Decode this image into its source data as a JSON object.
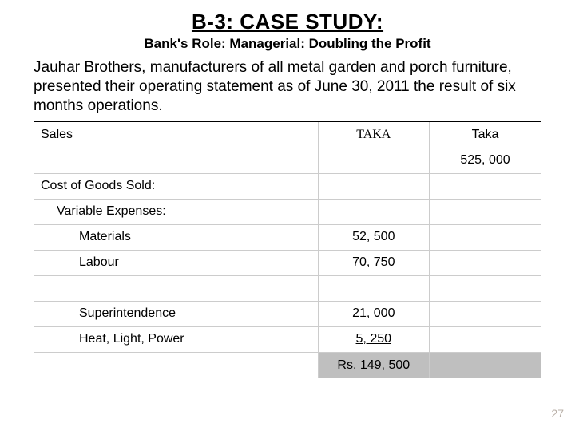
{
  "title": {
    "main": "B-3: CASE STUDY:",
    "sub": "Bank's Role: Managerial: Doubling the Profit"
  },
  "intro": "Jauhar Brothers, manufacturers of all metal garden and porch furniture, presented their operating statement as of June 30, 2011 the result of six months operations.",
  "table": {
    "rows": [
      {
        "label": "Sales",
        "indent": 0,
        "v1": "TAKA",
        "v1_class": "hdr-taka-serif",
        "v2": "Taka"
      },
      {
        "label": "",
        "indent": 0,
        "v1": "",
        "v2": "525, 000"
      },
      {
        "label": "Cost of Goods Sold:",
        "indent": 0,
        "v1": "",
        "v2": ""
      },
      {
        "label": "Variable Expenses:",
        "indent": 1,
        "v1": "",
        "v2": ""
      },
      {
        "label": "Materials",
        "indent": 2,
        "v1": "52, 500",
        "v2": ""
      },
      {
        "label": "Labour",
        "indent": 2,
        "v1": "70, 750",
        "v2": ""
      },
      {
        "label": "",
        "indent": 0,
        "v1": "",
        "v2": ""
      },
      {
        "label": "Superintendence",
        "indent": 2,
        "v1": "21, 000",
        "v2": ""
      },
      {
        "label": "Heat, Light, Power",
        "indent": 2,
        "v1": "5, 250",
        "v1_class": "underline",
        "v2": ""
      },
      {
        "label": "",
        "indent": 0,
        "v1": "Rs. 149, 500",
        "v2": "",
        "subtotal": true
      }
    ]
  },
  "page_number": "27",
  "colors": {
    "background": "#ffffff",
    "text": "#000000",
    "rule": "#cccccc",
    "subtotal_fill": "#bfbfbf",
    "pagenum": "#b9b0a8"
  }
}
